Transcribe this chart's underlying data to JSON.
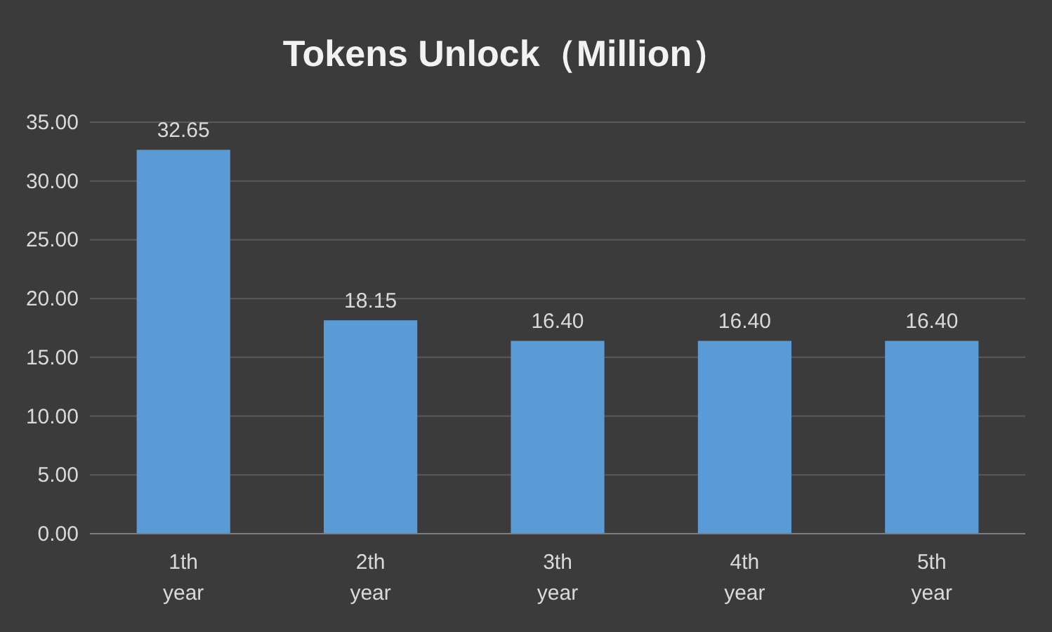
{
  "chart_data": {
    "type": "bar",
    "title": "Tokens Unlock（Million）",
    "categories": [
      "1th year",
      "2th year",
      "3th year",
      "4th year",
      "5th year"
    ],
    "values": [
      32.65,
      18.15,
      16.4,
      16.4,
      16.4
    ],
    "value_labels": [
      "32.65",
      "18.15",
      "16.40",
      "16.40",
      "16.40"
    ],
    "color": "#5b9bd5",
    "ylim": [
      0,
      35
    ],
    "yticks": [
      {
        "value": 0,
        "label": "0.00"
      },
      {
        "value": 5,
        "label": "5.00"
      },
      {
        "value": 10,
        "label": "10.00"
      },
      {
        "value": 15,
        "label": "15.00"
      },
      {
        "value": 20,
        "label": "20.00"
      },
      {
        "value": 25,
        "label": "25.00"
      },
      {
        "value": 30,
        "label": "30.00"
      },
      {
        "value": 35,
        "label": "35.00"
      }
    ],
    "grid": "y"
  }
}
